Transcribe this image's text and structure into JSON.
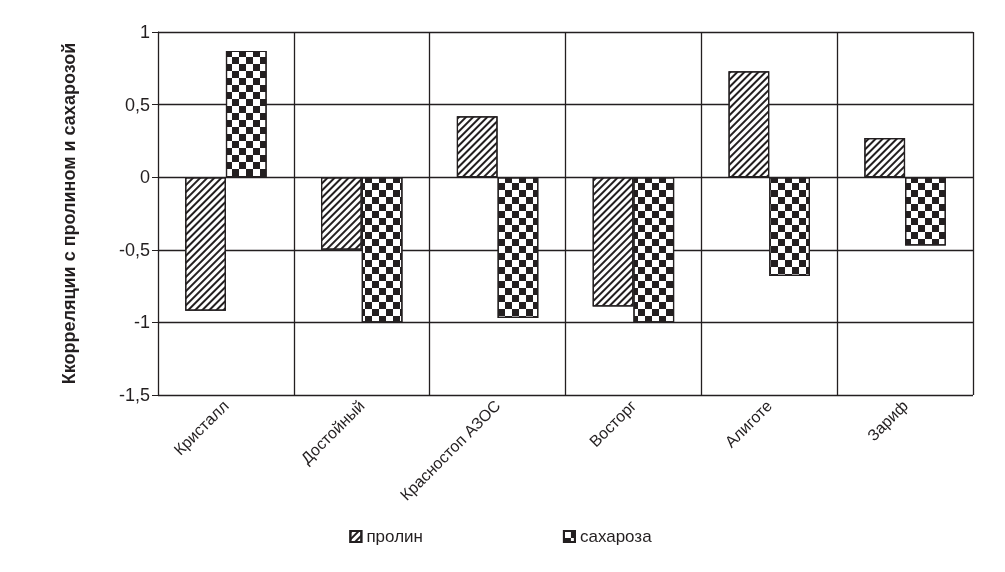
{
  "chart_data": {
    "type": "bar",
    "ylabel": "Ккорреляции с пролином и сахарозой",
    "categories": [
      "Кристалл",
      "Достойный",
      "Красностоп АЗОС",
      "Восторг",
      "Алиготе",
      "Зариф"
    ],
    "series": [
      {
        "name": "пролин",
        "color": "#231f20",
        "values": [
          -0.92,
          -0.5,
          0.42,
          -0.89,
          0.73,
          0.27
        ]
      },
      {
        "name": "сахароза",
        "color": "#231f20",
        "values": [
          0.87,
          -1.0,
          -0.97,
          -1.0,
          -0.68,
          -0.47
        ]
      }
    ],
    "ylim": [
      -1.5,
      1
    ],
    "yticks": [
      {
        "value": -1.5,
        "label": "-1,5"
      },
      -1,
      {
        "value": -0.5,
        "label": "-0,5"
      },
      0,
      {
        "value": 0.5,
        "label": "0,5"
      },
      1
    ],
    "grid": true,
    "legend": "bottom"
  }
}
